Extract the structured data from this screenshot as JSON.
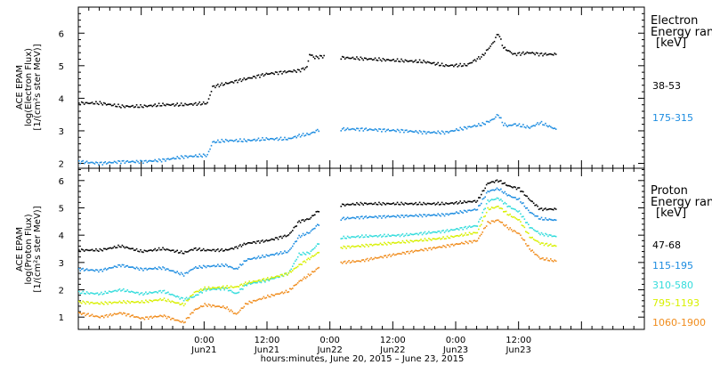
{
  "chart_data": [
    {
      "type": "scatter",
      "ylabel": [
        "ACE EPAM",
        "log(Electron Flux)",
        "[1/(cm²s ster MeV)]"
      ],
      "ylim": [
        1.85,
        6.8
      ],
      "yticks": [
        "2",
        "3",
        "4",
        "5",
        "6"
      ],
      "legend_title": [
        "Electron",
        "Energy ran",
        "[keV]"
      ],
      "series": [
        {
          "name": "38-53",
          "color": "#000000",
          "x": [
            0,
            4,
            8,
            12,
            16,
            20,
            24.5,
            25.5,
            28,
            32,
            36,
            40,
            42,
            43.5,
            44,
            45,
            47,
            50,
            53.5,
            62,
            66,
            70,
            74,
            77,
            79,
            80,
            81,
            82,
            83,
            86,
            88,
            91
          ],
          "y": [
            3.85,
            3.85,
            3.75,
            3.75,
            3.8,
            3.8,
            3.85,
            4.35,
            4.45,
            4.6,
            4.75,
            4.82,
            4.85,
            4.95,
            5.35,
            5.25,
            5.3,
            5.25,
            5.22,
            5.15,
            5.12,
            5.0,
            5.02,
            5.3,
            5.7,
            6.0,
            5.55,
            5.45,
            5.35,
            5.4,
            5.35,
            5.35
          ]
        },
        {
          "name": "175-315",
          "color": "#1c8ce0",
          "x": [
            0,
            4,
            8,
            12,
            16,
            20,
            24.5,
            25.5,
            28,
            32,
            36,
            40,
            42,
            44,
            46,
            50,
            53.5,
            62,
            66,
            70,
            74,
            77,
            79,
            80,
            81,
            82,
            83,
            86,
            88,
            91
          ],
          "y": [
            2.05,
            2.0,
            2.05,
            2.05,
            2.1,
            2.2,
            2.25,
            2.65,
            2.7,
            2.7,
            2.75,
            2.75,
            2.85,
            2.9,
            3.05,
            3.05,
            3.05,
            3.0,
            2.95,
            2.95,
            3.1,
            3.2,
            3.35,
            3.5,
            3.2,
            3.15,
            3.2,
            3.1,
            3.25,
            3.05
          ]
        }
      ]
    },
    {
      "type": "scatter",
      "ylabel": [
        "ACE EPAM",
        "log(Proton Flux)",
        "[1/(cm²s ster MeV)]"
      ],
      "ylim": [
        0.55,
        6.45
      ],
      "yticks": [
        "1",
        "2",
        "3",
        "4",
        "5",
        "6"
      ],
      "legend_title": [
        "Proton",
        "Energy ran",
        "[keV]"
      ],
      "series": [
        {
          "name": "47-68",
          "color": "#000000",
          "x": [
            0,
            4,
            8,
            12,
            16,
            20,
            22,
            24,
            28,
            30,
            32,
            36,
            40,
            42,
            44,
            46,
            50,
            53.5,
            62,
            70,
            76,
            78,
            80,
            82,
            84,
            86,
            88,
            91
          ],
          "y": [
            3.45,
            3.45,
            3.6,
            3.4,
            3.5,
            3.35,
            3.5,
            3.45,
            3.45,
            3.55,
            3.7,
            3.8,
            4.0,
            4.5,
            4.6,
            4.95,
            5.1,
            5.15,
            5.15,
            5.15,
            5.25,
            5.9,
            6.0,
            5.8,
            5.7,
            5.3,
            4.95,
            4.95
          ]
        },
        {
          "name": "115-195",
          "color": "#1c8ce0",
          "x": [
            0,
            4,
            8,
            12,
            16,
            20,
            22,
            24,
            28,
            30,
            32,
            36,
            40,
            42,
            44,
            46,
            50,
            53.5,
            62,
            70,
            76,
            78,
            80,
            82,
            84,
            86,
            88,
            91
          ],
          "y": [
            2.75,
            2.7,
            2.9,
            2.75,
            2.8,
            2.55,
            2.8,
            2.85,
            2.9,
            2.75,
            3.1,
            3.25,
            3.4,
            3.95,
            4.1,
            4.45,
            4.6,
            4.65,
            4.7,
            4.75,
            4.95,
            5.6,
            5.7,
            5.45,
            5.3,
            4.85,
            4.6,
            4.55
          ]
        },
        {
          "name": "310-580",
          "color": "#33dcdc",
          "x": [
            0,
            4,
            8,
            12,
            16,
            20,
            22,
            24,
            28,
            30,
            32,
            36,
            40,
            42,
            44,
            46,
            50,
            53.5,
            62,
            70,
            76,
            78,
            80,
            82,
            84,
            86,
            88,
            91
          ],
          "y": [
            1.9,
            1.85,
            2.0,
            1.85,
            1.95,
            1.65,
            1.75,
            2.0,
            2.05,
            1.85,
            2.2,
            2.35,
            2.6,
            3.3,
            3.35,
            3.75,
            3.9,
            3.95,
            4.0,
            4.15,
            4.35,
            5.25,
            5.35,
            5.05,
            4.85,
            4.3,
            4.05,
            3.95
          ]
        },
        {
          "name": "795-1193",
          "color": "#d8f000",
          "x": [
            0,
            4,
            8,
            12,
            16,
            20,
            22,
            24,
            28,
            30,
            32,
            36,
            40,
            42,
            44,
            46,
            50,
            53.5,
            62,
            70,
            76,
            78,
            80,
            82,
            84,
            86,
            88,
            91
          ],
          "y": [
            1.55,
            1.5,
            1.55,
            1.55,
            1.65,
            1.45,
            1.9,
            2.05,
            2.1,
            2.1,
            2.25,
            2.4,
            2.6,
            2.9,
            3.15,
            3.4,
            3.55,
            3.6,
            3.75,
            3.9,
            4.1,
            4.95,
            5.05,
            4.75,
            4.55,
            3.95,
            3.7,
            3.6
          ]
        },
        {
          "name": "1060-1900",
          "color": "#f08c1c",
          "x": [
            0,
            4,
            8,
            12,
            16,
            20,
            22,
            24,
            28,
            30,
            32,
            36,
            40,
            42,
            44,
            46,
            50,
            53.5,
            62,
            70,
            76,
            78,
            80,
            82,
            84,
            86,
            88,
            91
          ],
          "y": [
            1.15,
            1.0,
            1.15,
            0.95,
            1.05,
            0.8,
            1.25,
            1.45,
            1.35,
            1.1,
            1.5,
            1.75,
            1.95,
            2.3,
            2.55,
            2.85,
            3.0,
            3.05,
            3.35,
            3.6,
            3.8,
            4.45,
            4.55,
            4.25,
            4.05,
            3.5,
            3.15,
            3.05
          ]
        }
      ]
    }
  ],
  "x_axis": {
    "range_hours": [
      0,
      108
    ],
    "tick_labels": [
      {
        "t": 24,
        "time": "0:00",
        "date": "Jun21"
      },
      {
        "t": 36,
        "time": "12:00",
        "date": "Jun21"
      },
      {
        "t": 48,
        "time": "0:00",
        "date": "Jun22"
      },
      {
        "t": 60,
        "time": "12:00",
        "date": "Jun22"
      },
      {
        "t": 72,
        "time": "0:00",
        "date": "Jun23"
      },
      {
        "t": 84,
        "time": "12:00",
        "date": "Jun23"
      }
    ],
    "xlabel": "hours:minutes, June 20, 2015 – June 23, 2015"
  }
}
